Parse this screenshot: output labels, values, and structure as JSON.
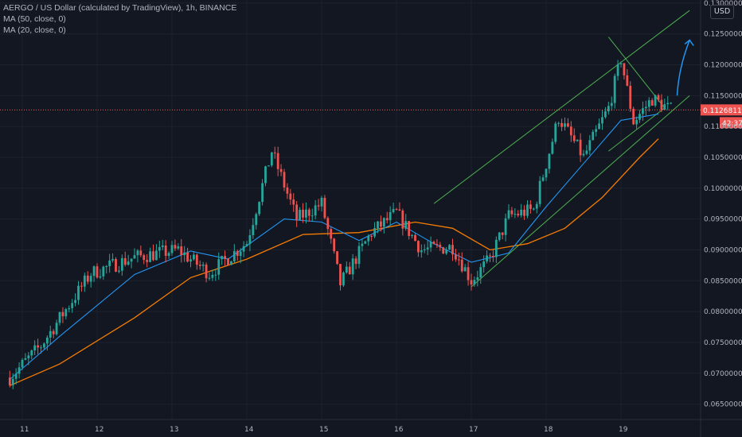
{
  "legend": {
    "title": "AERGO / US Dollar (calculated by TradingView), 1h, BINANCE",
    "ma50": "MA (50, close, 0)",
    "ma20": "MA (20, close, 0)"
  },
  "currency_label": "USD",
  "colors": {
    "background": "#131722",
    "up": "#26a69a",
    "down": "#ef5350",
    "ma20": "#2196f3",
    "ma50": "#f57c00",
    "channel": "#4caf50",
    "arrow": "#2196f3",
    "price_line": "#ef5350"
  },
  "chart_data": {
    "type": "candlestick",
    "title": "",
    "x_ticks": [
      "11",
      "12",
      "13",
      "14",
      "15",
      "16",
      "17",
      "18",
      "19"
    ],
    "y_ticks": [
      "0.06500000",
      "0.07000000",
      "0.07500000",
      "0.08000000",
      "0.08500000",
      "0.09000000",
      "0.09500000",
      "0.10000000",
      "0.10500000",
      "0.11000000",
      "0.11500000",
      "0.12000000",
      "0.12500000",
      "0.13000000"
    ],
    "ylim": [
      0.0625,
      0.1305
    ],
    "last_price": "0.11268118",
    "countdown": "42:37",
    "key_points": [
      {
        "t": "10 20:00",
        "p": 0.0693
      },
      {
        "t": "11 06:00",
        "p": 0.0745
      },
      {
        "t": "11 22:00",
        "p": 0.0862
      },
      {
        "t": "12 12:00",
        "p": 0.0888
      },
      {
        "t": "13 02:00",
        "p": 0.09
      },
      {
        "t": "13 12:00",
        "p": 0.0862
      },
      {
        "t": "14 00:00",
        "p": 0.0912
      },
      {
        "t": "14 08:00",
        "p": 0.106
      },
      {
        "t": "14 16:00",
        "p": 0.095
      },
      {
        "t": "15 00:00",
        "p": 0.0975
      },
      {
        "t": "15 06:00",
        "p": 0.0845
      },
      {
        "t": "15 16:00",
        "p": 0.0928
      },
      {
        "t": "16 00:00",
        "p": 0.096
      },
      {
        "t": "16 08:00",
        "p": 0.09
      },
      {
        "t": "16 18:00",
        "p": 0.0905
      },
      {
        "t": "17 00:00",
        "p": 0.085
      },
      {
        "t": "17 06:00",
        "p": 0.0885
      },
      {
        "t": "17 12:00",
        "p": 0.0955
      },
      {
        "t": "17 20:00",
        "p": 0.0965
      },
      {
        "t": "18 04:00",
        "p": 0.1115
      },
      {
        "t": "18 12:00",
        "p": 0.105
      },
      {
        "t": "18 20:00",
        "p": 0.113
      },
      {
        "t": "19 00:00",
        "p": 0.121
      },
      {
        "t": "19 04:00",
        "p": 0.1108
      },
      {
        "t": "19 10:00",
        "p": 0.1145
      },
      {
        "t": "19 16:00",
        "p": 0.1127
      }
    ],
    "ma20": [
      {
        "t": "10 20:00",
        "p": 0.069
      },
      {
        "t": "11 12:00",
        "p": 0.076
      },
      {
        "t": "12 12:00",
        "p": 0.086
      },
      {
        "t": "13 06:00",
        "p": 0.0898
      },
      {
        "t": "13 18:00",
        "p": 0.0885
      },
      {
        "t": "14 12:00",
        "p": 0.095
      },
      {
        "t": "15 00:00",
        "p": 0.0945
      },
      {
        "t": "15 12:00",
        "p": 0.0915
      },
      {
        "t": "16 00:00",
        "p": 0.0945
      },
      {
        "t": "16 12:00",
        "p": 0.091
      },
      {
        "t": "17 00:00",
        "p": 0.088
      },
      {
        "t": "17 12:00",
        "p": 0.0895
      },
      {
        "t": "18 00:00",
        "p": 0.097
      },
      {
        "t": "18 12:00",
        "p": 0.104
      },
      {
        "t": "19 00:00",
        "p": 0.111
      },
      {
        "t": "19 12:00",
        "p": 0.112
      }
    ],
    "ma50": [
      {
        "t": "10 20:00",
        "p": 0.068
      },
      {
        "t": "11 12:00",
        "p": 0.0715
      },
      {
        "t": "12 12:00",
        "p": 0.079
      },
      {
        "t": "13 06:00",
        "p": 0.0855
      },
      {
        "t": "14 00:00",
        "p": 0.0885
      },
      {
        "t": "14 18:00",
        "p": 0.0925
      },
      {
        "t": "15 12:00",
        "p": 0.0928
      },
      {
        "t": "16 06:00",
        "p": 0.0945
      },
      {
        "t": "16 18:00",
        "p": 0.0935
      },
      {
        "t": "17 06:00",
        "p": 0.09
      },
      {
        "t": "17 18:00",
        "p": 0.091
      },
      {
        "t": "18 06:00",
        "p": 0.0935
      },
      {
        "t": "18 18:00",
        "p": 0.0985
      },
      {
        "t": "19 06:00",
        "p": 0.105
      },
      {
        "t": "19 12:00",
        "p": 0.108
      }
    ],
    "annotations": [
      {
        "type": "channel-upper",
        "from": {
          "t": "16 12:00",
          "p": 0.0975
        },
        "to": {
          "t": "19 22:00",
          "p": 0.1288
        }
      },
      {
        "type": "channel-lower",
        "from": {
          "t": "17 00:00",
          "p": 0.084
        },
        "to": {
          "t": "19 22:00",
          "p": 0.115
        }
      },
      {
        "type": "triangle-upper",
        "from": {
          "t": "18 20:00",
          "p": 0.1245
        },
        "to": {
          "t": "19 14:00",
          "p": 0.113
        }
      },
      {
        "type": "triangle-lower",
        "from": {
          "t": "18 20:00",
          "p": 0.106
        },
        "to": {
          "t": "19 14:00",
          "p": 0.113
        }
      },
      {
        "type": "arrow",
        "from": {
          "t": "19 18:00",
          "p": 0.115
        },
        "to": {
          "t": "19 22:00",
          "p": 0.124
        }
      }
    ]
  }
}
